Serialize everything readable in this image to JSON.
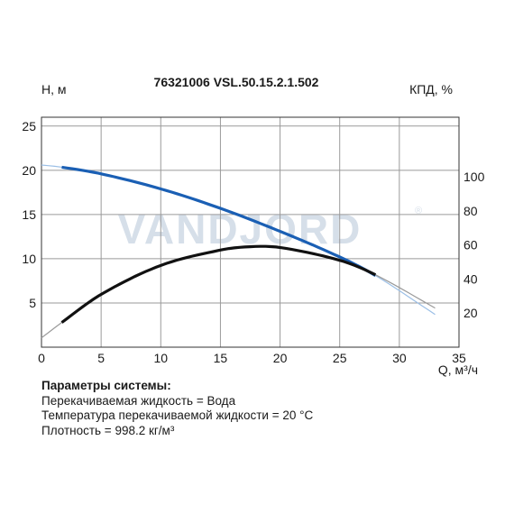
{
  "chart_data": {
    "type": "line",
    "title": "76321006 VSL.50.15.2.1.502",
    "watermark": "VANDJORD",
    "ylabel": "H, м",
    "y2label": "КПД, %",
    "xlabel": "Q, м³/ч",
    "xlim": [
      0,
      35
    ],
    "ylim": [
      0,
      26
    ],
    "y2lim": [
      0,
      135
    ],
    "xticks": [
      0,
      5,
      10,
      15,
      20,
      25,
      30,
      35
    ],
    "yticks": [
      5,
      10,
      15,
      20,
      25
    ],
    "y2ticks": [
      20,
      40,
      60,
      80,
      100
    ],
    "grid": true,
    "series": [
      {
        "axis": "left",
        "color": "#1a5fb4",
        "extrap_color": "#9bbfe6",
        "operating_range": [
          1.7,
          28
        ],
        "x": [
          0,
          1.7,
          5,
          10,
          15,
          20,
          25,
          28,
          33
        ],
        "y": [
          20.6,
          20.35,
          19.6,
          17.9,
          15.7,
          13.1,
          10.2,
          8.1,
          3.7
        ]
      },
      {
        "axis": "right",
        "color": "#111111",
        "extrap_color": "#9a9a9a",
        "operating_range": [
          1.7,
          28
        ],
        "x": [
          0,
          1.7,
          5,
          10,
          15,
          17.5,
          20,
          25,
          28,
          33
        ],
        "y": [
          5.5,
          14.5,
          31,
          48,
          57,
          59,
          58.5,
          51,
          42.5,
          23
        ]
      }
    ]
  },
  "system_params": {
    "title": "Параметры системы:",
    "lines": [
      "Перекачиваемая жидкость = Вода",
      "Температура перекачиваемой жидкости = 20 °C",
      "Плотность = 998.2 кг/м³"
    ]
  }
}
